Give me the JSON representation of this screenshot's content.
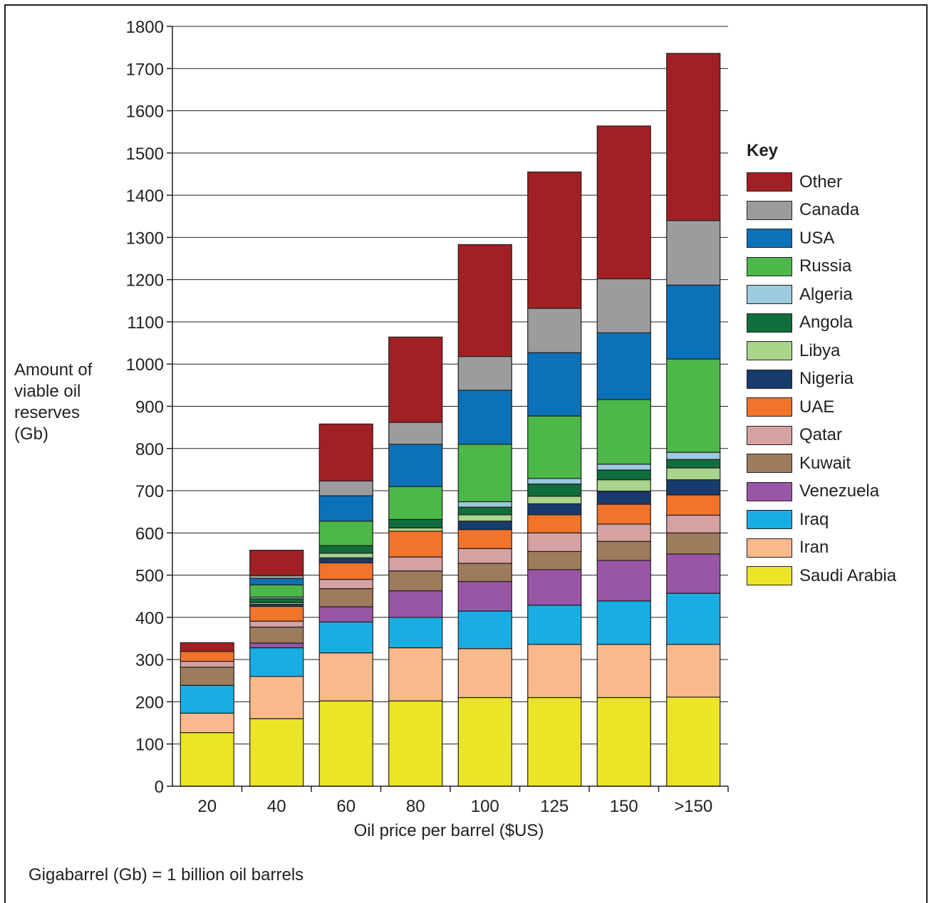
{
  "chart_data": {
    "type": "bar",
    "stacked": true,
    "xlabel": "Oil price per barrel ($US)",
    "ylabel": "Amount of\nviable oil\nreserves\n(Gb)",
    "ylim": [
      0,
      1800
    ],
    "yticks": [
      0,
      100,
      200,
      300,
      400,
      500,
      600,
      700,
      800,
      900,
      1000,
      1100,
      1200,
      1300,
      1400,
      1500,
      1600,
      1700,
      1800
    ],
    "grid": "horizontal",
    "legend_title": "Key",
    "legend_position": "right",
    "categories": [
      "20",
      "40",
      "60",
      "80",
      "100",
      "125",
      "150",
      ">150"
    ],
    "series": [
      {
        "name": "Saudi Arabia",
        "color": "#ece527",
        "values": [
          127,
          160,
          202,
          202,
          210,
          210,
          210,
          211
        ]
      },
      {
        "name": "Iran",
        "color": "#f9b98c",
        "values": [
          46,
          100,
          114,
          126,
          116,
          126,
          126,
          125
        ]
      },
      {
        "name": "Iraq",
        "color": "#19aee3",
        "values": [
          66,
          68,
          73,
          72,
          89,
          93,
          103,
          121
        ]
      },
      {
        "name": "Venezuela",
        "color": "#9a56a6",
        "values": [
          0,
          11,
          36,
          63,
          70,
          84,
          96,
          93
        ]
      },
      {
        "name": "Kuwait",
        "color": "#9e7b5b",
        "values": [
          43,
          38,
          43,
          47,
          43,
          43,
          45,
          50
        ]
      },
      {
        "name": "Qatar",
        "color": "#d6a1a1",
        "values": [
          14,
          14,
          22,
          33,
          35,
          44,
          41,
          42
        ]
      },
      {
        "name": "UAE",
        "color": "#f1742a",
        "values": [
          23,
          35,
          39,
          61,
          45,
          43,
          47,
          48
        ]
      },
      {
        "name": "Nigeria",
        "color": "#163b6c",
        "values": [
          0,
          5,
          12,
          0,
          20,
          26,
          31,
          36
        ]
      },
      {
        "name": "Libya",
        "color": "#a8d58a",
        "values": [
          0,
          4,
          11,
          8,
          15,
          18,
          27,
          28
        ]
      },
      {
        "name": "Angola",
        "color": "#0f6e3c",
        "values": [
          0,
          9,
          18,
          20,
          18,
          29,
          23,
          20
        ]
      },
      {
        "name": "Algeria",
        "color": "#9ccbde",
        "values": [
          0,
          4,
          0,
          0,
          13,
          13,
          14,
          17
        ]
      },
      {
        "name": "Russia",
        "color": "#4cb849",
        "values": [
          0,
          29,
          58,
          78,
          136,
          148,
          153,
          221
        ]
      },
      {
        "name": "USA",
        "color": "#0b72b9",
        "values": [
          0,
          15,
          60,
          100,
          128,
          150,
          158,
          175
        ]
      },
      {
        "name": "Canada",
        "color": "#9b9c9e",
        "values": [
          0,
          7,
          35,
          52,
          80,
          105,
          128,
          153
        ]
      },
      {
        "name": "Other",
        "color": "#a12023",
        "values": [
          21,
          60,
          135,
          202,
          265,
          323,
          362,
          396
        ]
      }
    ]
  },
  "footnote": "Gigabarrel (Gb) = 1 billion oil barrels"
}
